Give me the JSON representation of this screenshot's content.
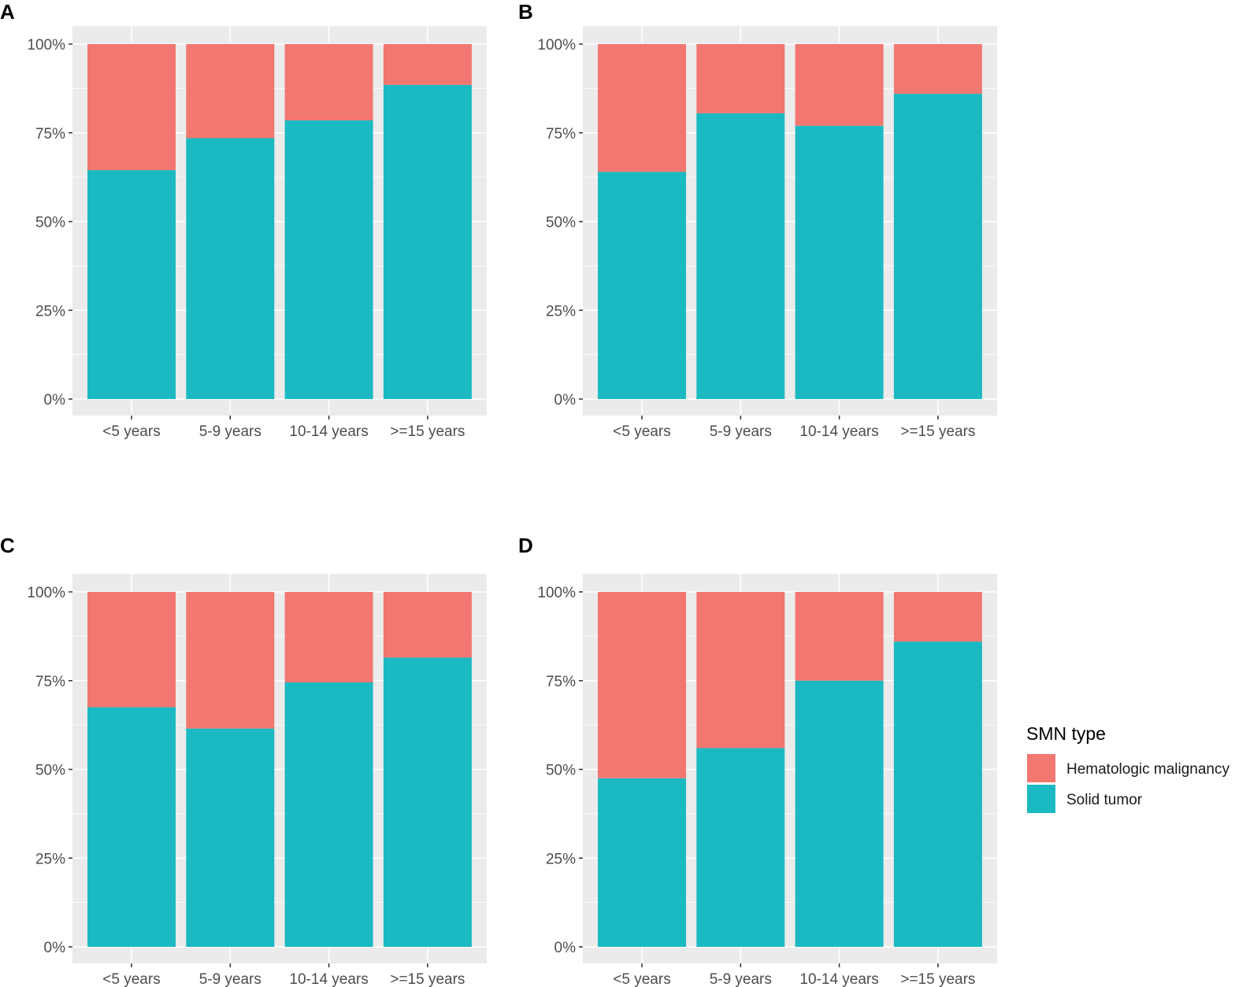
{
  "colors": {
    "hematologic": "#f27770",
    "solid": "#1bbac2",
    "panel_bg": "#ebebeb",
    "grid": "#ffffff",
    "tick": "#333333",
    "tick_text": "#4d4d4d"
  },
  "legend": {
    "title": "SMN type",
    "items": [
      {
        "label": "Hematologic malignancy",
        "color_key": "hematologic"
      },
      {
        "label": "Solid tumor",
        "color_key": "solid"
      }
    ]
  },
  "chart_data": [
    {
      "panel": "A",
      "type": "bar",
      "stacked": "percent",
      "categories": [
        "<5 years",
        "5-9 years",
        "10-14 years",
        ">=15 years"
      ],
      "yticks": [
        "0%",
        "25%",
        "50%",
        "75%",
        "100%"
      ],
      "ylim": [
        0,
        100
      ],
      "series": [
        {
          "name": "Solid tumor",
          "color_key": "solid",
          "values": [
            64.5,
            73.5,
            78.5,
            88.5
          ]
        },
        {
          "name": "Hematologic malignancy",
          "color_key": "hematologic",
          "values": [
            35.5,
            26.5,
            21.5,
            11.5
          ]
        }
      ]
    },
    {
      "panel": "B",
      "type": "bar",
      "stacked": "percent",
      "categories": [
        "<5 years",
        "5-9 years",
        "10-14 years",
        ">=15 years"
      ],
      "yticks": [
        "0%",
        "25%",
        "50%",
        "75%",
        "100%"
      ],
      "ylim": [
        0,
        100
      ],
      "series": [
        {
          "name": "Solid tumor",
          "color_key": "solid",
          "values": [
            64,
            80.5,
            77,
            86
          ]
        },
        {
          "name": "Hematologic malignancy",
          "color_key": "hematologic",
          "values": [
            36,
            19.5,
            23,
            14
          ]
        }
      ]
    },
    {
      "panel": "C",
      "type": "bar",
      "stacked": "percent",
      "categories": [
        "<5 years",
        "5-9 years",
        "10-14 years",
        ">=15 years"
      ],
      "yticks": [
        "0%",
        "25%",
        "50%",
        "75%",
        "100%"
      ],
      "ylim": [
        0,
        100
      ],
      "series": [
        {
          "name": "Solid tumor",
          "color_key": "solid",
          "values": [
            67.5,
            61.5,
            74.5,
            81.5
          ]
        },
        {
          "name": "Hematologic malignancy",
          "color_key": "hematologic",
          "values": [
            32.5,
            38.5,
            25.5,
            18.5
          ]
        }
      ]
    },
    {
      "panel": "D",
      "type": "bar",
      "stacked": "percent",
      "categories": [
        "<5 years",
        "5-9 years",
        "10-14 years",
        ">=15 years"
      ],
      "yticks": [
        "0%",
        "25%",
        "50%",
        "75%",
        "100%"
      ],
      "ylim": [
        0,
        100
      ],
      "series": [
        {
          "name": "Solid tumor",
          "color_key": "solid",
          "values": [
            47.5,
            56,
            75,
            86
          ]
        },
        {
          "name": "Hematologic malignancy",
          "color_key": "hematologic",
          "values": [
            52.5,
            44,
            25,
            14
          ]
        }
      ]
    }
  ]
}
